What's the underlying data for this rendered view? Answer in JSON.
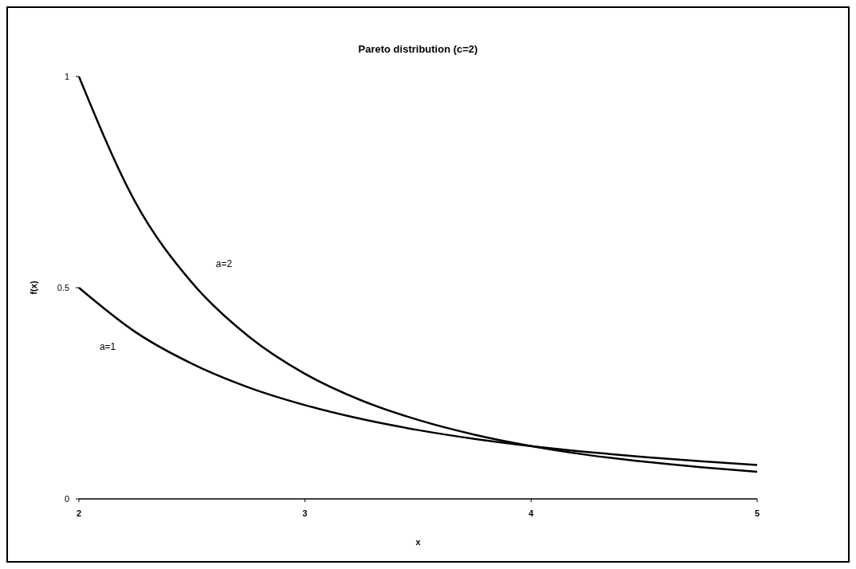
{
  "chart_data": {
    "type": "line",
    "title": "Pareto distribution (c=2)",
    "xlabel": "x",
    "ylabel": "f(x)",
    "xlim": [
      2,
      5
    ],
    "xticks": [
      2,
      3,
      4,
      5
    ],
    "ylim": [
      0,
      1
    ],
    "yticks": [
      0,
      0.5,
      1
    ],
    "grid": false,
    "legend": false,
    "marker": "none",
    "line_style": "solid",
    "x": [
      2,
      2.25,
      2.5,
      2.75,
      3,
      3.25,
      3.5,
      3.75,
      4,
      4.25,
      4.5,
      4.75,
      5
    ],
    "series": [
      {
        "name": "a=2",
        "color": "#000000",
        "values": [
          1,
          0.702,
          0.512,
          0.385,
          0.296,
          0.233,
          0.187,
          0.152,
          0.125,
          0.104,
          0.088,
          0.075,
          0.064
        ]
      },
      {
        "name": "a=1",
        "color": "#000000",
        "values": [
          0.5,
          0.395,
          0.32,
          0.264,
          0.222,
          0.189,
          0.163,
          0.142,
          0.125,
          0.111,
          0.099,
          0.089,
          0.08
        ]
      }
    ]
  }
}
